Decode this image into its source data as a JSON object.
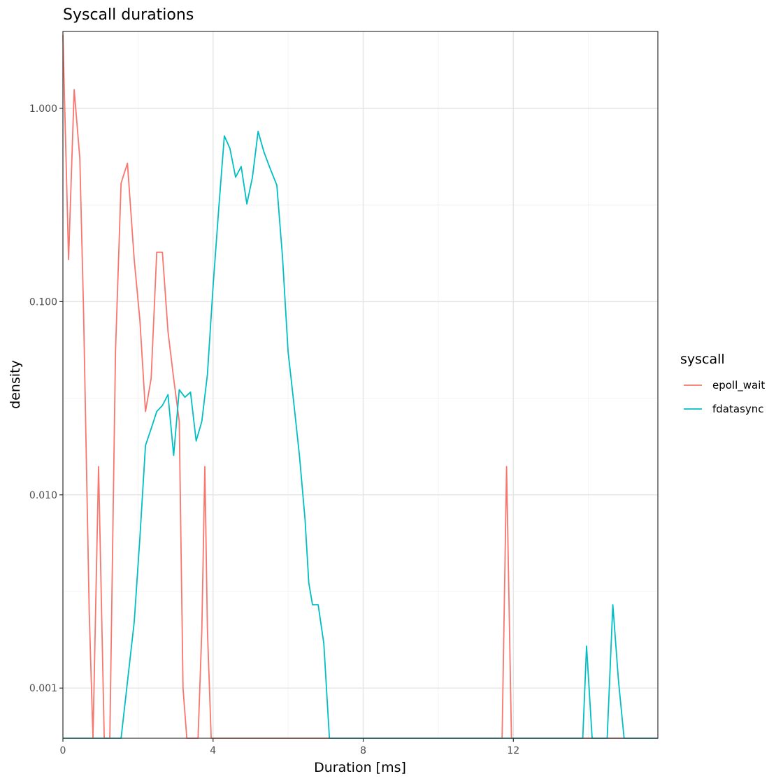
{
  "chart_data": {
    "type": "line",
    "title": "Syscall durations",
    "xlabel": "Duration [ms]",
    "ylabel": "density",
    "xlim": [
      0,
      15.85
    ],
    "ylim": [
      0.00055,
      2.5
    ],
    "yscale": "log",
    "xticks": [
      0,
      4,
      8,
      12
    ],
    "xtick_labels": [
      "0",
      "4",
      "8",
      "12"
    ],
    "xminor": [
      2,
      6,
      10,
      14
    ],
    "yticks": [
      0.001,
      0.01,
      0.1,
      1.0
    ],
    "ytick_labels": [
      "0.001",
      "0.010",
      "0.100",
      "1.000"
    ],
    "yminor": [
      0.0031623,
      0.031623,
      0.31623
    ],
    "grid": true,
    "legend": {
      "title": "syscall",
      "position": "right"
    },
    "series": [
      {
        "name": "epoll_wait",
        "color": "#F8766D",
        "points": [
          [
            0.0,
            2.4
          ],
          [
            0.15,
            0.165
          ],
          [
            0.3,
            1.25
          ],
          [
            0.45,
            0.55
          ],
          [
            0.55,
            0.09
          ],
          [
            0.7,
            0.0025
          ],
          [
            0.8,
            0.00055
          ],
          [
            0.95,
            0.014
          ],
          [
            1.1,
            0.00055
          ],
          [
            1.25,
            0.00055
          ],
          [
            1.4,
            0.055
          ],
          [
            1.55,
            0.41
          ],
          [
            1.72,
            0.52
          ],
          [
            1.9,
            0.165
          ],
          [
            2.05,
            0.08
          ],
          [
            2.2,
            0.027
          ],
          [
            2.35,
            0.04
          ],
          [
            2.5,
            0.18
          ],
          [
            2.65,
            0.18
          ],
          [
            2.8,
            0.07
          ],
          [
            2.95,
            0.04
          ],
          [
            3.1,
            0.024
          ],
          [
            3.2,
            0.001
          ],
          [
            3.3,
            0.00055
          ],
          [
            3.6,
            0.00055
          ],
          [
            3.7,
            0.002
          ],
          [
            3.78,
            0.014
          ],
          [
            3.85,
            0.002
          ],
          [
            3.95,
            0.00055
          ],
          [
            11.7,
            0.00055
          ],
          [
            11.82,
            0.014
          ],
          [
            11.95,
            0.00055
          ],
          [
            15.85,
            0.00055
          ]
        ]
      },
      {
        "name": "fdatasync",
        "color": "#00BFC4",
        "points": [
          [
            0.0,
            0.00055
          ],
          [
            1.55,
            0.00055
          ],
          [
            1.9,
            0.0022
          ],
          [
            2.05,
            0.006
          ],
          [
            2.2,
            0.018
          ],
          [
            2.35,
            0.022
          ],
          [
            2.5,
            0.027
          ],
          [
            2.65,
            0.029
          ],
          [
            2.8,
            0.033
          ],
          [
            2.95,
            0.016
          ],
          [
            3.1,
            0.035
          ],
          [
            3.25,
            0.032
          ],
          [
            3.4,
            0.034
          ],
          [
            3.55,
            0.019
          ],
          [
            3.7,
            0.024
          ],
          [
            3.85,
            0.042
          ],
          [
            4.0,
            0.12
          ],
          [
            4.15,
            0.3
          ],
          [
            4.3,
            0.72
          ],
          [
            4.45,
            0.62
          ],
          [
            4.6,
            0.44
          ],
          [
            4.75,
            0.5
          ],
          [
            4.9,
            0.32
          ],
          [
            5.05,
            0.44
          ],
          [
            5.2,
            0.76
          ],
          [
            5.35,
            0.6
          ],
          [
            5.5,
            0.5
          ],
          [
            5.7,
            0.4
          ],
          [
            5.85,
            0.17
          ],
          [
            6.0,
            0.055
          ],
          [
            6.15,
            0.03
          ],
          [
            6.3,
            0.016
          ],
          [
            6.45,
            0.0075
          ],
          [
            6.55,
            0.0035
          ],
          [
            6.65,
            0.0027
          ],
          [
            6.8,
            0.0027
          ],
          [
            6.95,
            0.0017
          ],
          [
            7.1,
            0.00055
          ],
          [
            13.85,
            0.00055
          ],
          [
            13.95,
            0.00165
          ],
          [
            14.1,
            0.00055
          ],
          [
            14.5,
            0.00055
          ],
          [
            14.65,
            0.0027
          ],
          [
            14.8,
            0.0011
          ],
          [
            14.95,
            0.00055
          ],
          [
            15.85,
            0.00055
          ]
        ]
      }
    ]
  }
}
